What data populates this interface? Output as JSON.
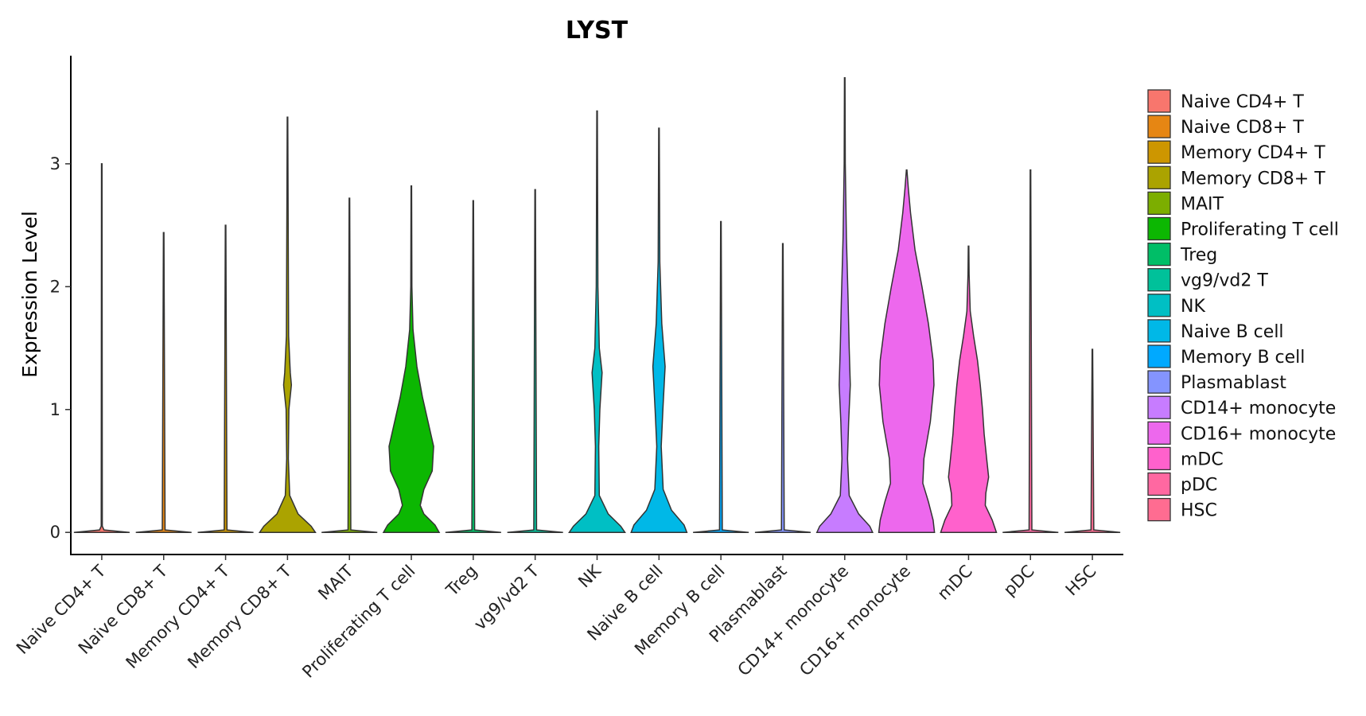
{
  "chart_data": {
    "type": "violin",
    "title": "LYST",
    "xlabel": "",
    "ylabel": "Expression Level",
    "ylim": [
      -0.18,
      3.88
    ],
    "yticks": [
      0,
      1,
      2,
      3
    ],
    "categories": [
      "Naive CD4+ T",
      "Naive CD8+ T",
      "Memory CD4+ T",
      "Memory CD8+ T",
      "MAIT",
      "Proliferating T cell",
      "Treg",
      "vg9/vd2 T",
      "NK",
      "Naive B cell",
      "Memory B cell",
      "Plasmablast",
      "CD14+ monocyte",
      "CD16+ monocyte",
      "mDC",
      "pDC",
      "HSC"
    ],
    "colors": [
      "#F8766D",
      "#E68613",
      "#CD9600",
      "#ABA300",
      "#7CAE00",
      "#0CB702",
      "#00BE67",
      "#00C19A",
      "#00BFC4",
      "#00B8E7",
      "#00A9FF",
      "#8494FF",
      "#C77CFF",
      "#ED68ED",
      "#FF61CC",
      "#FF68A1",
      "#FF6C91"
    ],
    "max_values": [
      3.0,
      2.44,
      2.5,
      3.38,
      2.72,
      2.82,
      2.7,
      2.79,
      3.43,
      3.29,
      2.53,
      2.35,
      3.7,
      2.95,
      2.33,
      2.95,
      1.49
    ],
    "density_profiles": [
      [
        [
          0,
          1.0
        ],
        [
          0.02,
          0.08
        ],
        [
          0.05,
          0.02
        ],
        [
          3.0,
          0.01
        ]
      ],
      [
        [
          0,
          1.0
        ],
        [
          0.02,
          0.05
        ],
        [
          2.44,
          0.01
        ]
      ],
      [
        [
          0,
          1.0
        ],
        [
          0.02,
          0.05
        ],
        [
          2.5,
          0.01
        ]
      ],
      [
        [
          0,
          1.0
        ],
        [
          0.05,
          0.85
        ],
        [
          0.15,
          0.38
        ],
        [
          0.3,
          0.08
        ],
        [
          0.6,
          0.03
        ],
        [
          1.0,
          0.05
        ],
        [
          1.2,
          0.14
        ],
        [
          1.3,
          0.1
        ],
        [
          1.6,
          0.04
        ],
        [
          3.38,
          0.01
        ]
      ],
      [
        [
          0,
          1.0
        ],
        [
          0.02,
          0.05
        ],
        [
          2.72,
          0.01
        ]
      ],
      [
        [
          0,
          1.0
        ],
        [
          0.06,
          0.85
        ],
        [
          0.15,
          0.45
        ],
        [
          0.22,
          0.32
        ],
        [
          0.35,
          0.45
        ],
        [
          0.5,
          0.75
        ],
        [
          0.7,
          0.8
        ],
        [
          0.9,
          0.6
        ],
        [
          1.1,
          0.4
        ],
        [
          1.35,
          0.2
        ],
        [
          1.65,
          0.06
        ],
        [
          2.0,
          0.02
        ],
        [
          2.82,
          0.01
        ]
      ],
      [
        [
          0,
          1.0
        ],
        [
          0.02,
          0.05
        ],
        [
          2.7,
          0.01
        ]
      ],
      [
        [
          0,
          1.0
        ],
        [
          0.02,
          0.05
        ],
        [
          2.79,
          0.01
        ]
      ],
      [
        [
          0,
          1.0
        ],
        [
          0.05,
          0.85
        ],
        [
          0.15,
          0.4
        ],
        [
          0.3,
          0.08
        ],
        [
          0.7,
          0.06
        ],
        [
          1.0,
          0.1
        ],
        [
          1.3,
          0.18
        ],
        [
          1.5,
          0.08
        ],
        [
          2.0,
          0.03
        ],
        [
          3.43,
          0.01
        ]
      ],
      [
        [
          0,
          1.0
        ],
        [
          0.06,
          0.9
        ],
        [
          0.18,
          0.45
        ],
        [
          0.35,
          0.15
        ],
        [
          0.7,
          0.08
        ],
        [
          1.0,
          0.14
        ],
        [
          1.35,
          0.22
        ],
        [
          1.7,
          0.1
        ],
        [
          2.2,
          0.03
        ],
        [
          3.29,
          0.01
        ]
      ],
      [
        [
          0,
          1.0
        ],
        [
          0.02,
          0.05
        ],
        [
          2.53,
          0.01
        ]
      ],
      [
        [
          0,
          1.0
        ],
        [
          0.02,
          0.05
        ],
        [
          2.35,
          0.01
        ]
      ],
      [
        [
          0,
          1.0
        ],
        [
          0.05,
          0.9
        ],
        [
          0.15,
          0.5
        ],
        [
          0.3,
          0.16
        ],
        [
          0.6,
          0.1
        ],
        [
          0.9,
          0.14
        ],
        [
          1.2,
          0.2
        ],
        [
          1.5,
          0.16
        ],
        [
          1.9,
          0.12
        ],
        [
          2.4,
          0.06
        ],
        [
          3.0,
          0.02
        ],
        [
          3.7,
          0.01
        ]
      ],
      [
        [
          0,
          1.0
        ],
        [
          0.1,
          0.95
        ],
        [
          0.25,
          0.78
        ],
        [
          0.4,
          0.58
        ],
        [
          0.6,
          0.62
        ],
        [
          0.9,
          0.85
        ],
        [
          1.2,
          0.98
        ],
        [
          1.4,
          0.95
        ],
        [
          1.7,
          0.78
        ],
        [
          2.0,
          0.55
        ],
        [
          2.3,
          0.3
        ],
        [
          2.6,
          0.14
        ],
        [
          2.8,
          0.06
        ],
        [
          2.95,
          0.01
        ]
      ],
      [
        [
          0,
          1.0
        ],
        [
          0.1,
          0.85
        ],
        [
          0.22,
          0.6
        ],
        [
          0.32,
          0.62
        ],
        [
          0.45,
          0.72
        ],
        [
          0.6,
          0.65
        ],
        [
          0.8,
          0.56
        ],
        [
          1.0,
          0.5
        ],
        [
          1.2,
          0.42
        ],
        [
          1.4,
          0.32
        ],
        [
          1.6,
          0.18
        ],
        [
          1.8,
          0.06
        ],
        [
          2.1,
          0.02
        ],
        [
          2.33,
          0.01
        ]
      ],
      [
        [
          0,
          1.0
        ],
        [
          0.02,
          0.05
        ],
        [
          2.95,
          0.01
        ]
      ],
      [
        [
          0,
          1.0
        ],
        [
          0.02,
          0.05
        ],
        [
          1.49,
          0.01
        ]
      ]
    ]
  }
}
